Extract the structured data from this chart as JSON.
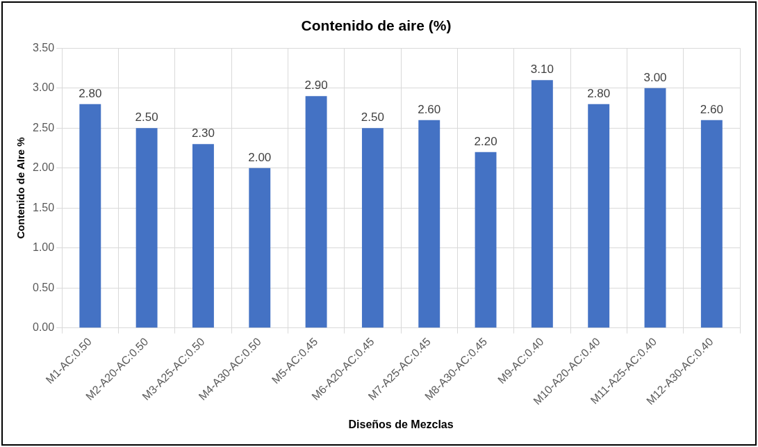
{
  "chart_data": {
    "type": "bar",
    "title": "Contenido de aire (%)",
    "xlabel": "Diseños de Mezclas",
    "ylabel": "Contenido de AIre %",
    "categories": [
      "M1-AC:0.50",
      "M2-A20-AC:0.50",
      "M3-A25-AC:0.50",
      "M4-A30-AC:0.50",
      "M5-AC:0.45",
      "M6-A20-AC:0.45",
      "M7-A25-AC:0.45",
      "M8-A30-AC:0.45",
      "M9-AC:0.40",
      "M10-A20-AC:0.40",
      "M11-A25-AC:0.40",
      "M12-A30-AC:0.40"
    ],
    "values": [
      2.8,
      2.5,
      2.3,
      2.0,
      2.9,
      2.5,
      2.6,
      2.2,
      3.1,
      2.8,
      3.0,
      2.6
    ],
    "value_labels": [
      "2.80",
      "2.50",
      "2.30",
      "2.00",
      "2.90",
      "2.50",
      "2.60",
      "2.20",
      "3.10",
      "2.80",
      "3.00",
      "2.60"
    ],
    "color": "#4472c4",
    "ylim": [
      0,
      3.5
    ],
    "yticks": [
      {
        "value": 0,
        "label": "0.00"
      },
      {
        "value": 0.5,
        "label": "0.50"
      },
      {
        "value": 1,
        "label": "1.00"
      },
      {
        "value": 1.5,
        "label": "1.50"
      },
      {
        "value": 2,
        "label": "2.00"
      },
      {
        "value": 2.5,
        "label": "2.50"
      },
      {
        "value": 3,
        "label": "3.00"
      },
      {
        "value": 3.5,
        "label": "3.50"
      }
    ],
    "grid": true,
    "legend": false
  }
}
